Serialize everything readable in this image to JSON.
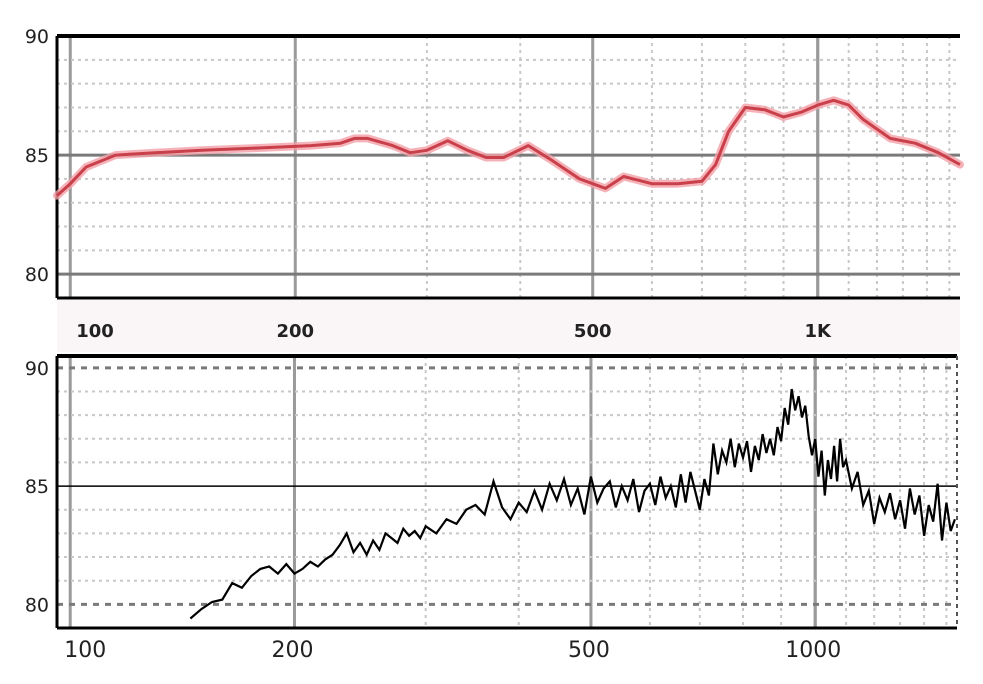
{
  "chart_data": [
    {
      "type": "line",
      "title": "",
      "xlabel": "",
      "ylabel": "",
      "x_scale": "log",
      "xlim": [
        96,
        1550
      ],
      "ylim": [
        79,
        90
      ],
      "grid": true,
      "yticks": [
        80,
        85,
        90
      ],
      "xticks": [
        100,
        200,
        500,
        1000
      ],
      "xtick_labels": [
        "100",
        "200",
        "500",
        "1K"
      ],
      "line_color": "#c9404a",
      "series": [
        {
          "x": [
            96,
            100,
            105,
            115,
            130,
            150,
            180,
            210,
            230,
            240,
            250,
            270,
            285,
            300,
            320,
            340,
            360,
            380,
            410,
            440,
            480,
            500,
            520,
            550,
            600,
            650,
            700,
            730,
            760,
            800,
            850,
            900,
            950,
            1000,
            1050,
            1100,
            1150,
            1250,
            1350,
            1450,
            1550
          ],
          "y": [
            83.3,
            83.8,
            84.5,
            85.0,
            85.1,
            85.2,
            85.3,
            85.4,
            85.5,
            85.7,
            85.7,
            85.4,
            85.1,
            85.2,
            85.6,
            85.2,
            84.9,
            84.9,
            85.4,
            84.8,
            84.0,
            83.8,
            83.6,
            84.1,
            83.8,
            83.8,
            83.9,
            84.6,
            86.0,
            87.0,
            86.9,
            86.6,
            86.8,
            87.1,
            87.3,
            87.1,
            86.5,
            85.7,
            85.5,
            85.1,
            84.6
          ]
        }
      ]
    },
    {
      "type": "line",
      "title": "",
      "xlabel": "",
      "ylabel": "",
      "x_scale": "log",
      "xlim": [
        96,
        1550
      ],
      "ylim": [
        79,
        90.5
      ],
      "grid": true,
      "yticks": [
        80,
        85,
        90
      ],
      "xticks": [
        100,
        200,
        500,
        1000
      ],
      "xtick_labels": [
        "100",
        "200",
        "500",
        "1000"
      ],
      "line_color": "#000000",
      "series": [
        {
          "x": [
            145,
            150,
            155,
            160,
            165,
            170,
            175,
            180,
            185,
            190,
            195,
            200,
            205,
            210,
            215,
            220,
            225,
            230,
            235,
            240,
            245,
            250,
            255,
            260,
            265,
            270,
            275,
            280,
            285,
            290,
            295,
            300,
            310,
            320,
            330,
            340,
            350,
            360,
            370,
            380,
            390,
            400,
            410,
            420,
            430,
            440,
            450,
            460,
            470,
            480,
            490,
            500,
            510,
            520,
            530,
            540,
            550,
            560,
            570,
            580,
            590,
            600,
            610,
            620,
            630,
            640,
            650,
            660,
            670,
            680,
            690,
            700,
            710,
            720,
            730,
            740,
            750,
            760,
            770,
            780,
            790,
            800,
            810,
            820,
            830,
            840,
            850,
            860,
            870,
            880,
            890,
            900,
            910,
            920,
            930,
            940,
            950,
            960,
            970,
            980,
            990,
            1000,
            1010,
            1020,
            1030,
            1040,
            1050,
            1060,
            1070,
            1080,
            1090,
            1100,
            1120,
            1140,
            1160,
            1180,
            1200,
            1220,
            1240,
            1260,
            1280,
            1300,
            1320,
            1340,
            1360,
            1380,
            1400,
            1420,
            1440,
            1460,
            1480,
            1500,
            1520,
            1540
          ],
          "y": [
            79.4,
            79.8,
            80.1,
            80.2,
            80.9,
            80.7,
            81.2,
            81.5,
            81.6,
            81.3,
            81.7,
            81.3,
            81.5,
            81.8,
            81.6,
            81.9,
            82.1,
            82.5,
            83.0,
            82.2,
            82.6,
            82.1,
            82.7,
            82.3,
            83.0,
            82.8,
            82.6,
            83.2,
            82.9,
            83.1,
            82.8,
            83.3,
            83.0,
            83.6,
            83.4,
            84.0,
            84.2,
            83.8,
            85.2,
            84.1,
            83.6,
            84.3,
            83.9,
            84.8,
            84.0,
            85.1,
            84.4,
            85.3,
            84.2,
            84.9,
            83.8,
            85.4,
            84.3,
            84.9,
            85.2,
            84.1,
            85.0,
            84.4,
            85.3,
            83.9,
            84.8,
            85.1,
            84.2,
            85.4,
            84.5,
            85.0,
            84.1,
            85.5,
            84.3,
            85.6,
            84.8,
            84.0,
            85.3,
            84.6,
            86.8,
            85.5,
            86.5,
            86.0,
            87.0,
            85.8,
            86.8,
            86.2,
            86.9,
            85.6,
            86.7,
            86.1,
            87.2,
            86.4,
            87.0,
            86.3,
            87.5,
            86.9,
            88.3,
            87.6,
            89.1,
            88.2,
            88.8,
            87.9,
            88.4,
            87.1,
            86.3,
            87.0,
            85.4,
            86.5,
            84.6,
            86.1,
            85.3,
            86.7,
            85.2,
            87.0,
            85.8,
            86.1,
            84.9,
            85.6,
            84.2,
            84.8,
            83.4,
            84.5,
            83.9,
            84.7,
            83.6,
            84.4,
            83.2,
            84.9,
            83.8,
            84.6,
            82.9,
            84.2,
            83.5,
            85.1,
            82.7,
            84.3,
            83.1,
            83.6
          ]
        }
      ]
    }
  ]
}
